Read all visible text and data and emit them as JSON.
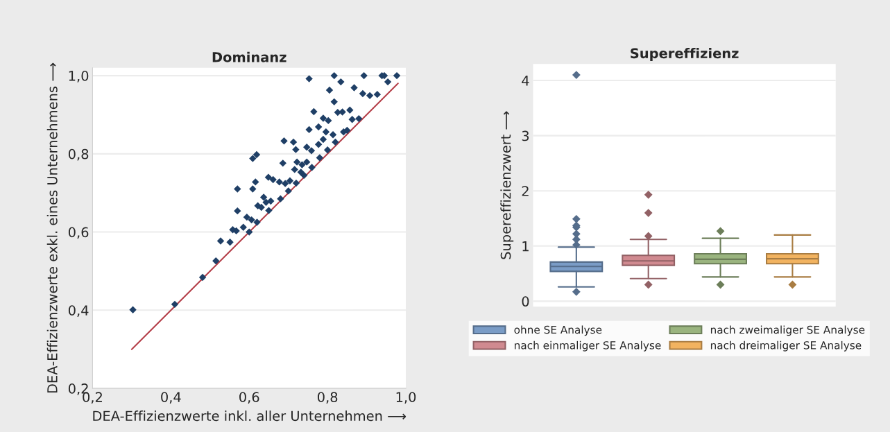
{
  "chart_data": [
    {
      "type": "scatter",
      "title": "Dominanz",
      "xlabel": "DEA-Effizienzwerte inkl. aller Unternehmen ⟶",
      "ylabel": "DEA-Effizienzwerte exkl. eines Unternehmens ⟶",
      "xlim": [
        0.2,
        1.0
      ],
      "ylim": [
        0.2,
        1.02
      ],
      "xticks": [
        {
          "value": 0.2,
          "label": "0,2"
        },
        {
          "value": 0.4,
          "label": "0,4"
        },
        {
          "value": 0.6,
          "label": "0,6"
        },
        {
          "value": 0.8,
          "label": "0,8"
        },
        {
          "value": 1.0,
          "label": "1,0"
        }
      ],
      "yticks": [
        {
          "value": 0.2,
          "label": "0,2"
        },
        {
          "value": 0.4,
          "label": "0,4"
        },
        {
          "value": 0.6,
          "label": "0,6"
        },
        {
          "value": 0.8,
          "label": "0,8"
        },
        {
          "value": 1.0,
          "label": "1,0"
        }
      ],
      "grid": "y",
      "series": [
        {
          "type": "scatter",
          "marker": "diamond",
          "color": "#1f3f66",
          "x": [
            0.753,
            0.817,
            0.893,
            0.939,
            0.945,
            0.977,
            0.834,
            0.805,
            0.868,
            0.89,
            0.908,
            0.927,
            0.954,
            0.817,
            0.765,
            0.826,
            0.838,
            0.857,
            0.789,
            0.802,
            0.777,
            0.753,
            0.796,
            0.814,
            0.863,
            0.841,
            0.689,
            0.713,
            0.719,
            0.747,
            0.759,
            0.789,
            0.777,
            0.619,
            0.609,
            0.686,
            0.722,
            0.735,
            0.747,
            0.716,
            0.732,
            0.649,
            0.661,
            0.677,
            0.692,
            0.704,
            0.57,
            0.609,
            0.616,
            0.637,
            0.643,
            0.655,
            0.622,
            0.631,
            0.57,
            0.594,
            0.606,
            0.558,
            0.567,
            0.585,
            0.527,
            0.551,
            0.515,
            0.481,
            0.41,
            0.303,
            0.6,
            0.62,
            0.65,
            0.68,
            0.7,
            0.72,
            0.74,
            0.76,
            0.78,
            0.8,
            0.82,
            0.85,
            0.88
          ],
          "values": [
            0.992,
            1.0,
            1.0,
            1.0,
            1.0,
            1.0,
            0.984,
            0.963,
            0.969,
            0.954,
            0.949,
            0.952,
            0.984,
            0.933,
            0.908,
            0.906,
            0.907,
            0.912,
            0.891,
            0.885,
            0.869,
            0.862,
            0.856,
            0.849,
            0.888,
            0.856,
            0.833,
            0.83,
            0.811,
            0.817,
            0.808,
            0.837,
            0.824,
            0.798,
            0.788,
            0.776,
            0.779,
            0.772,
            0.779,
            0.76,
            0.753,
            0.74,
            0.734,
            0.728,
            0.724,
            0.731,
            0.71,
            0.71,
            0.728,
            0.689,
            0.676,
            0.679,
            0.667,
            0.663,
            0.654,
            0.638,
            0.631,
            0.606,
            0.603,
            0.612,
            0.577,
            0.574,
            0.526,
            0.484,
            0.415,
            0.401,
            0.6,
            0.625,
            0.655,
            0.685,
            0.705,
            0.725,
            0.745,
            0.765,
            0.79,
            0.81,
            0.83,
            0.86,
            0.89
          ]
        },
        {
          "type": "line",
          "color": "#b5404a",
          "x": [
            0.3,
            0.98
          ],
          "values": [
            0.3,
            0.98
          ]
        }
      ]
    },
    {
      "type": "box",
      "title": "Supereffizienz",
      "ylabel": "Supereffizienzwert ⟶",
      "categories": [
        null,
        null,
        null,
        null
      ],
      "ylim": [
        -0.1,
        4.3
      ],
      "yticks": [
        0,
        1,
        2,
        3,
        4
      ],
      "grid": "y",
      "tick_labels": "y",
      "legend": "bottom",
      "series": [
        {
          "name": "ohne SE Analyse",
          "color": "#7a9cc6",
          "boxes": [
            {
              "low": 0.26,
              "q1": 0.54,
              "median": 0.63,
              "q3": 0.71,
              "high": 0.98,
              "outliers": [
                0.17,
                1.02,
                1.12,
                1.22,
                1.34,
                1.37,
                1.49,
                4.1
              ]
            },
            null,
            null,
            null
          ]
        },
        {
          "name": "nach einmaliger SE Analyse",
          "color": "#d08a90",
          "boxes": [
            null,
            {
              "low": 0.41,
              "q1": 0.65,
              "median": 0.73,
              "q3": 0.83,
              "high": 1.12,
              "outliers": [
                0.3,
                1.18,
                1.6,
                1.93
              ]
            },
            null,
            null
          ]
        },
        {
          "name": "nach zweimaliger SE Analyse",
          "color": "#9ab47f",
          "boxes": [
            null,
            null,
            {
              "low": 0.44,
              "q1": 0.68,
              "median": 0.76,
              "q3": 0.86,
              "high": 1.14,
              "outliers": [
                0.3,
                1.27
              ]
            },
            null
          ]
        },
        {
          "name": "nach dreimaliger SE Analyse",
          "color": "#f2b360",
          "boxes": [
            null,
            null,
            null,
            {
              "low": 0.44,
              "q1": 0.68,
              "median": 0.77,
              "q3": 0.86,
              "high": 1.2,
              "outliers": [
                0.3
              ]
            }
          ]
        }
      ]
    }
  ]
}
